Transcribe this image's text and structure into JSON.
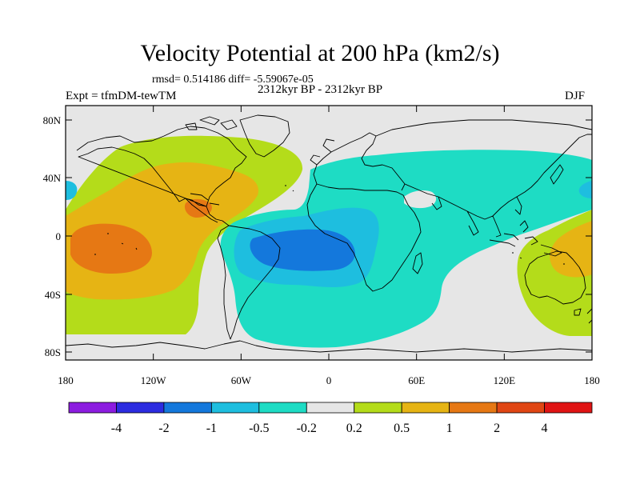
{
  "title": "Velocity Potential at 200 hPa (km2/s)",
  "stats_line": "rmsd= 0.514186 diff= -5.59067e-05",
  "period_line": "2312kyr BP - 2312kyr BP",
  "experiment_label": "Expt = tfmDM-tewTM",
  "season_label": "DJF",
  "y_axis_labels": [
    "80N",
    "40N",
    "0",
    "40S",
    "80S"
  ],
  "x_axis_labels": [
    "180",
    "120W",
    "60W",
    "0",
    "60E",
    "120E",
    "180"
  ],
  "colorbar": {
    "colors": [
      "#8c1ce0",
      "#2c2ce0",
      "#1478dc",
      "#1ebedf",
      "#1edcc4",
      "#e6e6e6",
      "#b4dc1a",
      "#e6b414",
      "#e67814",
      "#e04614",
      "#e01414"
    ],
    "labels": [
      "-4",
      "-2",
      "-1",
      "-0.5",
      "-0.2",
      "0.2",
      "0.5",
      "1",
      "2",
      "4"
    ]
  },
  "field_colors": {
    "neutral": "#e6e6e6",
    "light_positive": "#b4dc1a",
    "positive": "#e6b414",
    "strong_positive": "#e67814",
    "light_negative": "#1edcc4",
    "negative": "#1ebedf",
    "strong_negative": "#1478dc",
    "coastline": "#000000"
  }
}
